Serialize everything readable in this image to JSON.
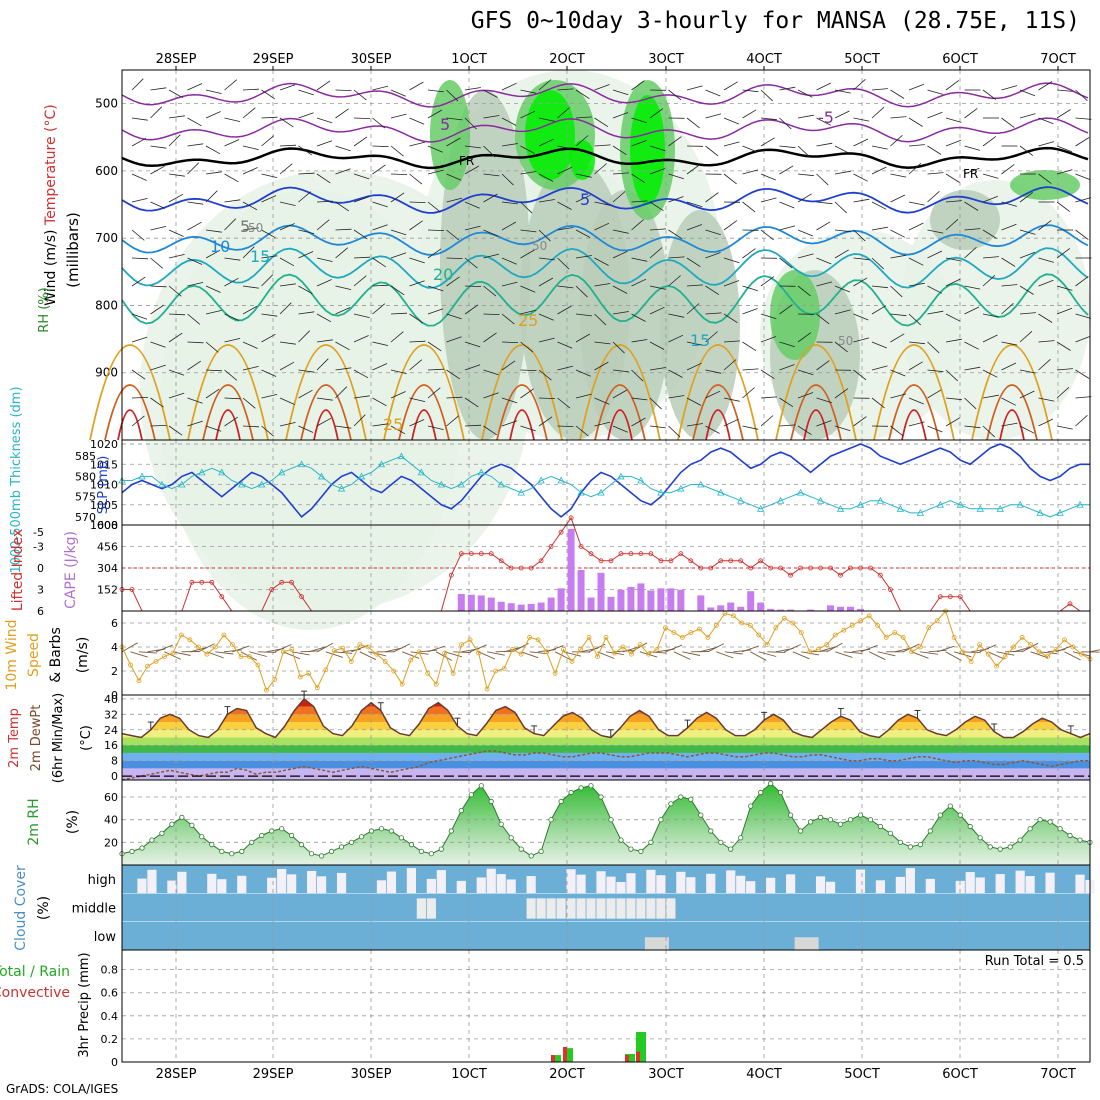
{
  "title": "GFS 0~10day 3-hourly for MANSA (28.75E, 11S)",
  "credit": "GrADS: COLA/IGES",
  "colors": {
    "rh_light": "#e6f2e6",
    "rh_mid": "#b9ccb9",
    "rh_dark": "#9aaf9a",
    "rh_green": "#66cc66",
    "rh_bright": "#00ee00",
    "cloud": "#6baed6",
    "cloud_clear": "#f3f0f7",
    "slp": "#1f3fd0",
    "thickness": "#2ab5c8",
    "cape_bar": "#c77cf0",
    "lifted": "#d03030",
    "wind_speed": "#e0a020",
    "rh2m": "#44bb44"
  },
  "chart_data": [
    {
      "type": "contour-heatmap",
      "panel": "vertical-profile",
      "ylabel_parts": [
        "Wind (m/s)",
        "Temperature (°C)",
        "RH (%)",
        "(millibars)"
      ],
      "y_ticks": [
        500,
        600,
        700,
        800,
        900
      ],
      "ylim": [
        1000,
        450
      ],
      "date_labels_top": [
        "28SEP",
        "29SEP",
        "30SEP",
        "1OCT",
        "2OCT",
        "3OCT",
        "4OCT",
        "5OCT",
        "6OCT",
        "7OCT"
      ],
      "contour_labels": [
        "5",
        "5",
        "-5",
        "5",
        "10",
        "15",
        "20",
        "25",
        "15",
        "25",
        "FR",
        "FR",
        "50",
        "50",
        "50"
      ],
      "grid": true
    },
    {
      "type": "line",
      "panel": "slp-thickness",
      "series": [
        {
          "name": "SLP (mb)",
          "axis": "right",
          "values": [
            1008,
            1010,
            1011,
            1010,
            1009,
            1010,
            1012,
            1013,
            1011,
            1009,
            1007,
            1009,
            1011,
            1013,
            1012,
            1010,
            1008,
            1005,
            1002,
            1004,
            1007,
            1010,
            1012,
            1013,
            1011,
            1009,
            1008,
            1010,
            1012,
            1011,
            1009,
            1007,
            1005,
            1004,
            1006,
            1009,
            1012,
            1014,
            1015,
            1014,
            1012,
            1010,
            1007,
            1004,
            1002,
            1004,
            1008,
            1011,
            1013,
            1012,
            1010,
            1008,
            1006,
            1005,
            1007,
            1010,
            1013,
            1015,
            1016,
            1018,
            1019,
            1018,
            1016,
            1014,
            1015,
            1017,
            1018,
            1017,
            1015,
            1013,
            1015,
            1017,
            1018,
            1019,
            1020,
            1019,
            1017,
            1016,
            1015,
            1016,
            1017,
            1018,
            1019,
            1018,
            1016,
            1015,
            1017,
            1019,
            1020,
            1019,
            1017,
            1014,
            1012,
            1011,
            1012,
            1014,
            1015,
            1015
          ]
        },
        {
          "name": "1000-500mb Thickness (dm)",
          "axis": "left",
          "values": [
            579,
            579,
            580,
            580,
            578,
            577,
            578,
            580,
            581,
            582,
            581,
            579,
            578,
            577,
            578,
            579,
            581,
            582,
            583,
            582,
            580,
            578,
            577,
            578,
            580,
            581,
            583,
            584,
            585,
            583,
            581,
            579,
            578,
            577,
            578,
            580,
            581,
            580,
            578,
            577,
            576,
            577,
            579,
            580,
            579,
            578,
            576,
            575,
            576,
            578,
            580,
            580,
            579,
            577,
            576,
            576,
            577,
            578,
            578,
            577,
            576,
            575,
            574,
            573,
            572,
            573,
            574,
            575,
            576,
            575,
            574,
            573,
            572,
            572,
            573,
            574,
            574,
            573,
            572,
            571,
            571,
            572,
            573,
            574,
            573,
            572,
            572,
            572,
            572,
            573,
            573,
            572,
            571,
            570,
            571,
            572,
            573,
            573
          ]
        }
      ],
      "y_ticks_left": [
        570,
        575,
        580,
        585
      ],
      "y_ticks_right": [
        1000,
        1005,
        1010,
        1015,
        1020
      ],
      "ylim_left": [
        568,
        589
      ],
      "ylim_right": [
        1000,
        1021
      ],
      "ylabel_left": "1000-500mb Thickness (dm)",
      "ylabel_right": "SLP (mb)",
      "grid": true
    },
    {
      "type": "bar+line",
      "panel": "cape-lifted-index",
      "ylabel_left": "Lifted Index",
      "ylabel_right": "CAPE (J/kg)",
      "y_ticks_left": [
        "-5",
        "-3",
        "0",
        "3",
        "6"
      ],
      "y_ticks_right": [
        "608",
        "456",
        "304",
        "152"
      ],
      "cape_values": [
        0,
        0,
        0,
        0,
        0,
        0,
        0,
        0,
        0,
        0,
        0,
        0,
        0,
        0,
        0,
        0,
        0,
        0,
        0,
        0,
        0,
        0,
        0,
        0,
        0,
        0,
        0,
        0,
        0,
        0,
        0,
        0,
        0,
        0,
        120,
        115,
        110,
        95,
        65,
        55,
        45,
        50,
        60,
        95,
        160,
        580,
        290,
        95,
        270,
        100,
        150,
        170,
        195,
        145,
        160,
        160,
        150,
        0,
        110,
        25,
        40,
        60,
        30,
        140,
        60,
        15,
        10,
        10,
        0,
        10,
        0,
        40,
        30,
        30,
        15,
        0,
        0,
        0,
        0,
        0,
        0,
        0,
        0,
        0,
        0,
        0,
        0,
        0,
        0,
        0,
        0,
        0,
        0,
        0,
        0,
        0,
        0,
        0
      ],
      "lifted_values": [
        3,
        3,
        6,
        6,
        6,
        6,
        6,
        2,
        2,
        2,
        4,
        6,
        6,
        6,
        6,
        3,
        2,
        2,
        4,
        6,
        6,
        6,
        6,
        6,
        6,
        6,
        6,
        6,
        6,
        6,
        6,
        6,
        6,
        1,
        -2,
        -2,
        -2,
        -2,
        -1,
        0,
        0,
        0,
        -1,
        -3,
        -5,
        -7,
        -3,
        -2,
        -1,
        -1,
        -2,
        -2,
        -2,
        -2,
        -1,
        -1,
        -2,
        -1,
        0,
        0,
        -1,
        -1,
        -1,
        0,
        -1,
        0,
        0,
        1,
        0,
        0,
        0,
        0,
        1,
        0,
        0,
        0,
        1,
        3,
        6,
        6,
        6,
        6,
        4,
        4,
        4,
        6,
        6,
        6,
        6,
        6,
        6,
        6,
        6,
        6,
        6,
        5,
        6,
        6
      ],
      "ylim_cape": [
        0,
        608
      ],
      "ylim_lifted": [
        6,
        -6
      ],
      "grid": true
    },
    {
      "type": "line",
      "panel": "10m-wind",
      "ylabel": "10m Wind Speed & Barbs (m/s)",
      "y_ticks": [
        0,
        2,
        4,
        6
      ],
      "ylim": [
        0,
        7
      ],
      "series": [
        {
          "name": "Speed",
          "values": [
            4.0,
            2.5,
            1.2,
            2.4,
            2.8,
            3.2,
            3.5,
            5.0,
            4.6,
            4.0,
            3.4,
            4.0,
            5.0,
            4.2,
            3.2,
            3.2,
            2.5,
            0.4,
            1.3,
            3.6,
            3.8,
            1.5,
            1.8,
            0.6,
            2.1,
            3.7,
            3.9,
            2.8,
            4.2,
            4.0,
            3.4,
            2.8,
            2.0,
            0.9,
            2.9,
            3.6,
            1.8,
            0.9,
            3.5,
            1.8,
            4.2,
            4.6,
            3.5,
            0.5,
            2.0,
            2.2,
            3.8,
            3.4,
            4.8,
            4.6,
            3.6,
            1.8,
            3.8,
            2.8,
            3.8,
            4.8,
            3.2,
            4.8,
            3.5,
            4.0,
            3.4,
            4.2,
            3.4,
            3.8,
            5.6,
            5.2,
            4.8,
            5.2,
            5.5,
            4.8,
            5.8,
            6.8,
            6.6,
            6.0,
            5.8,
            5.0,
            4.2,
            5.6,
            6.4,
            6.0,
            5.2,
            3.6,
            3.8,
            4.2,
            5.0,
            5.4,
            5.8,
            6.2,
            6.6,
            5.8,
            4.8,
            5.2,
            4.8,
            3.6,
            4.0,
            5.6,
            6.2,
            7.0,
            4.8,
            3.6,
            2.8,
            4.2,
            3.4,
            2.4,
            3.2,
            4.0,
            4.8,
            4.2,
            3.6,
            3.2,
            3.8,
            4.6,
            4.0,
            3.4,
            3.0
          ]
        }
      ],
      "grid": true
    },
    {
      "type": "area",
      "panel": "2m-temp",
      "ylabel": "2m Temp / 2m DewPt (6hr Min/Max) (°C)",
      "y_ticks": [
        0,
        8,
        16,
        24,
        32,
        40
      ],
      "ylim": [
        -2,
        42
      ],
      "series": [
        {
          "name": "2m Temp",
          "values": [
            22,
            21,
            20,
            24,
            30,
            32,
            30,
            24,
            21,
            20,
            24,
            32,
            35,
            34,
            25,
            22,
            20,
            26,
            34,
            40,
            36,
            26,
            22,
            21,
            26,
            34,
            38,
            34,
            25,
            22,
            21,
            27,
            35,
            38,
            34,
            26,
            22,
            21,
            27,
            34,
            36,
            33,
            25,
            22,
            21,
            26,
            31,
            33,
            30,
            24,
            21,
            20,
            25,
            31,
            34,
            31,
            24,
            21,
            21,
            25,
            30,
            33,
            30,
            24,
            21,
            21,
            24,
            29,
            32,
            29,
            23,
            21,
            20,
            24,
            28,
            31,
            29,
            23,
            21,
            20,
            24,
            29,
            32,
            30,
            24,
            22,
            21,
            24,
            28,
            31,
            29,
            23,
            20,
            20,
            23,
            27,
            30,
            28,
            24,
            22,
            20,
            22
          ]
        },
        {
          "name": "2m DewPt",
          "values": [
            -2,
            -1,
            0,
            1,
            2,
            3,
            2,
            1,
            0,
            1,
            2,
            2,
            4,
            3,
            1,
            2,
            2,
            3,
            4,
            5,
            4,
            3,
            2,
            3,
            4,
            5,
            4,
            3,
            2,
            3,
            4,
            5,
            7,
            8,
            9,
            10,
            11,
            12,
            13,
            13,
            12,
            11,
            11,
            12,
            12,
            11,
            10,
            10,
            11,
            12,
            12,
            11,
            10,
            10,
            11,
            12,
            12,
            12,
            11,
            10,
            11,
            12,
            12,
            11,
            10,
            10,
            11,
            12,
            12,
            11,
            10,
            10,
            11,
            11,
            10,
            9,
            8,
            8,
            9,
            9,
            8,
            8,
            9,
            10,
            10,
            9,
            8,
            7,
            8,
            8,
            7,
            6,
            6,
            7,
            8,
            7,
            6,
            5,
            6,
            7,
            8,
            8
          ]
        }
      ],
      "grid": true
    },
    {
      "type": "area",
      "panel": "2m-rh",
      "ylabel": "2m RH (%)",
      "y_ticks": [
        20,
        40,
        60
      ],
      "ylim": [
        0,
        75
      ],
      "values": [
        10,
        12,
        15,
        22,
        28,
        36,
        42,
        35,
        25,
        18,
        12,
        10,
        12,
        20,
        26,
        30,
        32,
        26,
        18,
        10,
        8,
        12,
        16,
        20,
        25,
        30,
        32,
        30,
        24,
        18,
        12,
        10,
        14,
        30,
        48,
        62,
        70,
        56,
        36,
        24,
        14,
        8,
        12,
        40,
        56,
        64,
        68,
        70,
        60,
        40,
        22,
        14,
        12,
        20,
        40,
        54,
        60,
        58,
        44,
        30,
        20,
        14,
        24,
        52,
        64,
        72,
        64,
        44,
        30,
        38,
        42,
        40,
        36,
        40,
        44,
        40,
        34,
        28,
        20,
        16,
        18,
        30,
        44,
        52,
        44,
        34,
        24,
        16,
        14,
        16,
        22,
        32,
        40,
        38,
        32,
        26,
        22,
        20
      ],
      "grid": true
    },
    {
      "type": "heatmap",
      "panel": "cloud-cover",
      "ylabel": "Cloud Cover (%)",
      "rows": [
        "high",
        "middle",
        "low"
      ],
      "grid": true
    },
    {
      "type": "bar",
      "panel": "3hr-precip",
      "ylabel": "3hr Precip (mm)",
      "left_labels": [
        "Total / Rain",
        "Convective"
      ],
      "run_total_label": "Run Total = 0.5",
      "y_ticks": [
        "0",
        "0.2",
        "0.4",
        "0.6",
        "0.8"
      ],
      "ylim": [
        0,
        0.97
      ],
      "bars": [
        {
          "x": "2OCT-06",
          "total": 0.06,
          "convective": 0.06
        },
        {
          "x": "2OCT-09",
          "total": 0.12,
          "convective": 0.13
        },
        {
          "x": "2OCT-21",
          "total": 0.07,
          "convective": 0.06
        },
        {
          "x": "3OCT-00",
          "total": 0.26,
          "convective": 0.09
        }
      ],
      "x_labels_bottom": [
        "28SEP",
        "29SEP",
        "30SEP",
        "1OCT",
        "2OCT",
        "3OCT",
        "4OCT",
        "5OCT",
        "6OCT",
        "7OCT"
      ],
      "grid": true
    }
  ]
}
